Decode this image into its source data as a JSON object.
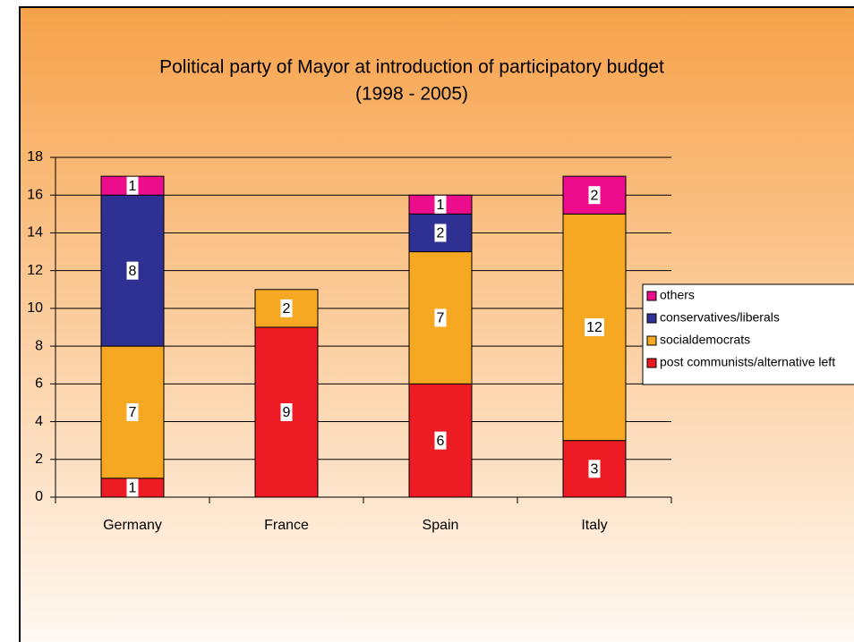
{
  "chart_data": {
    "type": "bar",
    "stacked": true,
    "title": "Political party of Mayor at introduction of participatory budget",
    "subtitle": "(1998 - 2005)",
    "categories": [
      "Germany",
      "France",
      "Spain",
      "Italy"
    ],
    "series": [
      {
        "name": "post communists/alternative left",
        "color": "#ed1c24",
        "values": [
          1,
          9,
          6,
          3
        ]
      },
      {
        "name": "socialdemocrats",
        "color": "#f7a823",
        "values": [
          7,
          2,
          7,
          12
        ]
      },
      {
        "name": "conservatives/liberals",
        "color": "#2e3192",
        "values": [
          8,
          0,
          2,
          0
        ]
      },
      {
        "name": "others",
        "color": "#ec0c8c",
        "values": [
          1,
          0,
          1,
          2
        ]
      }
    ],
    "ylim": [
      0,
      18
    ],
    "yticks": [
      0,
      2,
      4,
      6,
      8,
      10,
      12,
      14,
      16,
      18
    ],
    "grid": true,
    "legend": "right"
  }
}
